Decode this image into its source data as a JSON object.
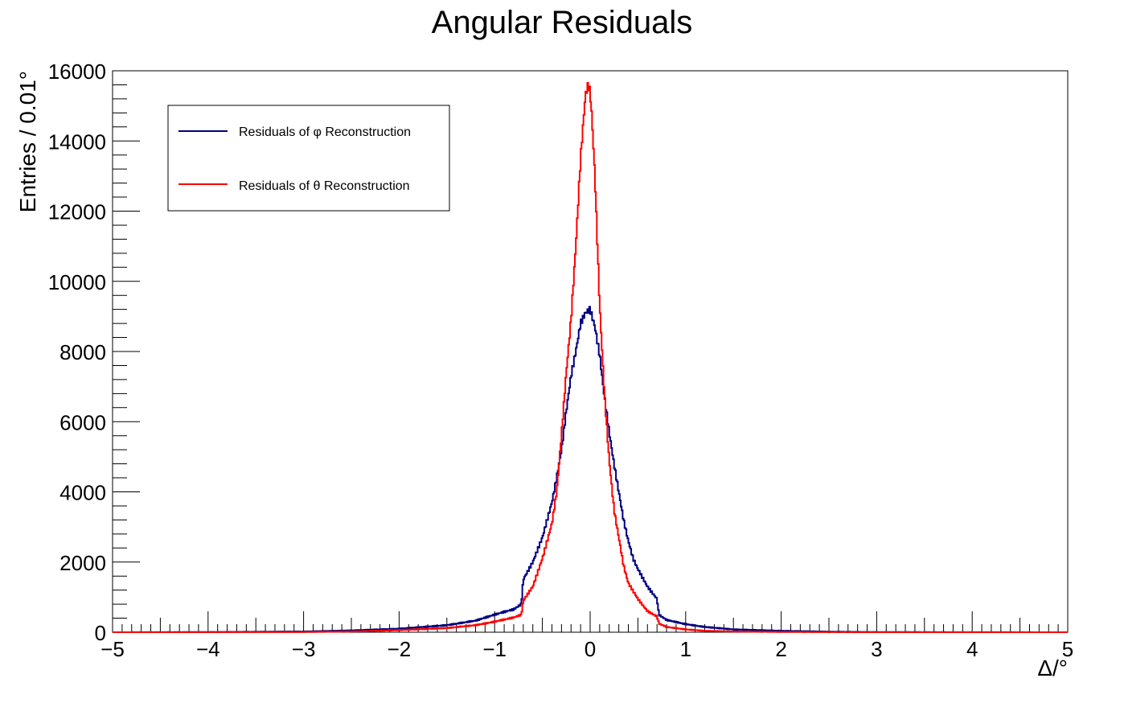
{
  "chart_data": {
    "type": "line",
    "title": "Angular Residuals",
    "xlabel": "Δ/°",
    "ylabel": "Entries / 0.01°",
    "xlim": [
      -5,
      5
    ],
    "ylim": [
      0,
      16000
    ],
    "x_ticks": [
      -5,
      -4,
      -3,
      -2,
      -1,
      0,
      1,
      2,
      3,
      4,
      5
    ],
    "x_tick_labels": [
      "−5",
      "−4",
      "−3",
      "−2",
      "−1",
      "0",
      "1",
      "2",
      "3",
      "4",
      "5"
    ],
    "y_ticks": [
      0,
      2000,
      4000,
      6000,
      8000,
      10000,
      12000,
      14000,
      16000
    ],
    "y_tick_labels": [
      "0",
      "2000",
      "4000",
      "6000",
      "8000",
      "10000",
      "12000",
      "14000",
      "16000"
    ],
    "grid": false,
    "legend_position": "top-left",
    "series": [
      {
        "name": "Residuals of φ Reconstruction",
        "color": "#000080",
        "x": [
          -5,
          -4,
          -3,
          -2.5,
          -2,
          -1.5,
          -1.2,
          -1,
          -0.9,
          -0.8,
          -0.72,
          -0.7,
          -0.6,
          -0.5,
          -0.4,
          -0.35,
          -0.3,
          -0.25,
          -0.2,
          -0.15,
          -0.1,
          -0.05,
          0,
          0.05,
          0.1,
          0.15,
          0.2,
          0.25,
          0.3,
          0.35,
          0.4,
          0.45,
          0.5,
          0.6,
          0.7,
          0.72,
          0.8,
          1.0,
          1.2,
          1.5,
          2,
          2.5,
          3,
          4,
          5
        ],
        "values": [
          0,
          5,
          20,
          50,
          100,
          200,
          330,
          500,
          580,
          650,
          800,
          1500,
          2000,
          2700,
          3700,
          4400,
          5200,
          6300,
          7300,
          8000,
          8800,
          9100,
          9200,
          8700,
          7900,
          6700,
          5700,
          4800,
          4000,
          3200,
          2600,
          2100,
          1800,
          1300,
          950,
          500,
          350,
          230,
          150,
          80,
          40,
          15,
          5,
          2,
          0
        ]
      },
      {
        "name": "Residuals of θ Reconstruction",
        "color": "#ff0000",
        "x": [
          -5,
          -3,
          -2.5,
          -2,
          -1.5,
          -1.2,
          -1,
          -0.8,
          -0.72,
          -0.7,
          -0.6,
          -0.5,
          -0.4,
          -0.35,
          -0.3,
          -0.25,
          -0.2,
          -0.15,
          -0.1,
          -0.05,
          -0.02,
          0,
          0.02,
          0.05,
          0.1,
          0.15,
          0.2,
          0.25,
          0.3,
          0.35,
          0.4,
          0.5,
          0.6,
          0.7,
          0.72,
          0.8,
          1.0,
          1.2,
          1.5,
          2,
          2.5,
          3,
          5
        ],
        "values": [
          0,
          5,
          20,
          60,
          120,
          200,
          300,
          420,
          500,
          900,
          1300,
          2100,
          3100,
          4000,
          5600,
          7400,
          8900,
          11000,
          13500,
          15300,
          15600,
          15400,
          14600,
          13000,
          9300,
          6800,
          4900,
          3500,
          2700,
          1900,
          1400,
          950,
          600,
          450,
          250,
          150,
          80,
          40,
          20,
          8,
          3,
          1,
          0
        ]
      }
    ]
  }
}
